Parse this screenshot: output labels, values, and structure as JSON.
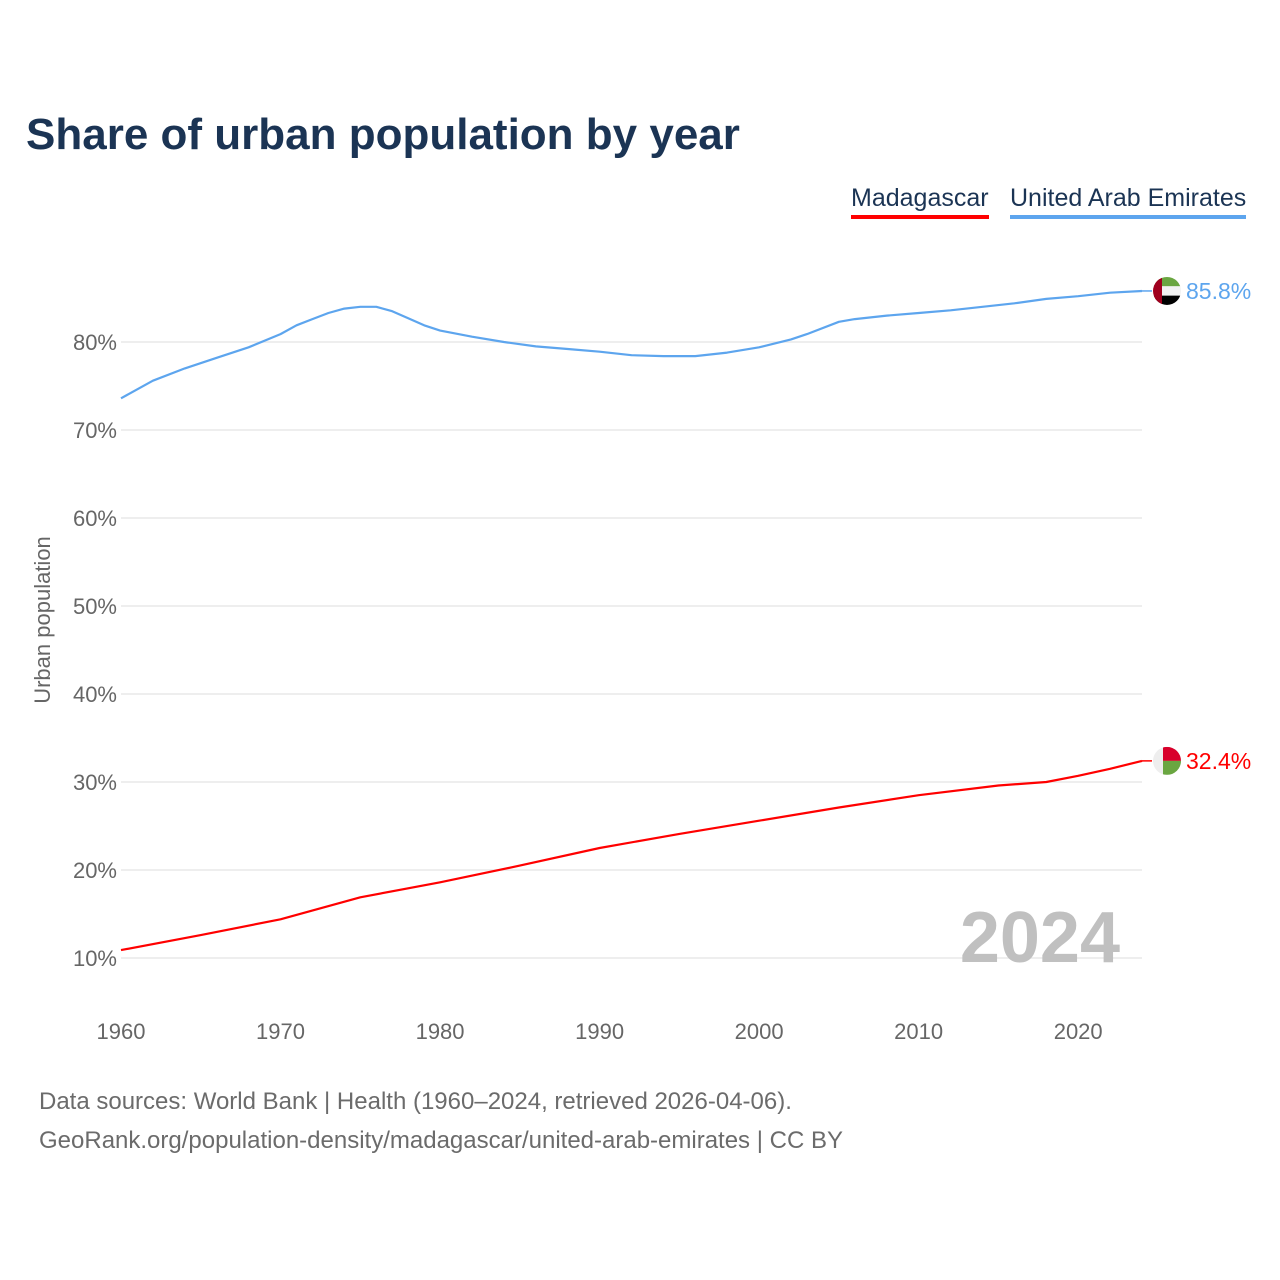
{
  "chart_data": {
    "type": "line",
    "title": "Share of urban population by year",
    "ylabel": "Urban population",
    "xlabel": "",
    "xlim": [
      1960,
      2024
    ],
    "ylim": [
      5,
      90
    ],
    "x_ticks": [
      "1960",
      "1970",
      "1980",
      "1990",
      "2000",
      "2010",
      "2020"
    ],
    "y_ticks": [
      "10%",
      "20%",
      "30%",
      "40%",
      "50%",
      "60%",
      "70%",
      "80%"
    ],
    "y_tick_values": [
      10,
      20,
      30,
      40,
      50,
      60,
      70,
      80
    ],
    "grid": true,
    "legend_position": "top-right",
    "watermark_year": "2024",
    "series": [
      {
        "name": "Madagascar",
        "color": "#ff0000",
        "end_label": "32.4%",
        "flag": "madagascar-flag",
        "x": [
          1960,
          1965,
          1970,
          1975,
          1980,
          1985,
          1990,
          1995,
          2000,
          2005,
          2010,
          2015,
          2018,
          2020,
          2022,
          2024
        ],
        "values": [
          10.9,
          12.6,
          14.4,
          16.9,
          18.6,
          20.5,
          22.5,
          24.1,
          25.6,
          27.1,
          28.5,
          29.6,
          30.0,
          30.7,
          31.5,
          32.4
        ]
      },
      {
        "name": "United Arab Emirates",
        "color": "#5da5ee",
        "end_label": "85.8%",
        "flag": "uae-flag",
        "x": [
          1960,
          1962,
          1964,
          1966,
          1968,
          1970,
          1971,
          1972,
          1973,
          1974,
          1975,
          1976,
          1977,
          1978,
          1979,
          1980,
          1982,
          1984,
          1986,
          1988,
          1990,
          1992,
          1994,
          1996,
          1998,
          2000,
          2002,
          2003,
          2005,
          2006,
          2008,
          2010,
          2012,
          2014,
          2016,
          2018,
          2020,
          2022,
          2024
        ],
        "values": [
          73.6,
          75.6,
          77.0,
          78.2,
          79.4,
          80.9,
          81.9,
          82.6,
          83.3,
          83.8,
          84.0,
          84.0,
          83.5,
          82.7,
          81.9,
          81.3,
          80.6,
          80.0,
          79.5,
          79.2,
          78.9,
          78.5,
          78.4,
          78.4,
          78.8,
          79.4,
          80.3,
          80.9,
          82.3,
          82.6,
          83.0,
          83.3,
          83.6,
          84.0,
          84.4,
          84.9,
          85.2,
          85.6,
          85.8
        ]
      }
    ]
  },
  "sources": {
    "line1": "Data sources: World Bank | Health (1960–2024, retrieved 2026-04-06).",
    "line2": "GeoRank.org/population-density/madagascar/united-arab-emirates | CC BY"
  }
}
